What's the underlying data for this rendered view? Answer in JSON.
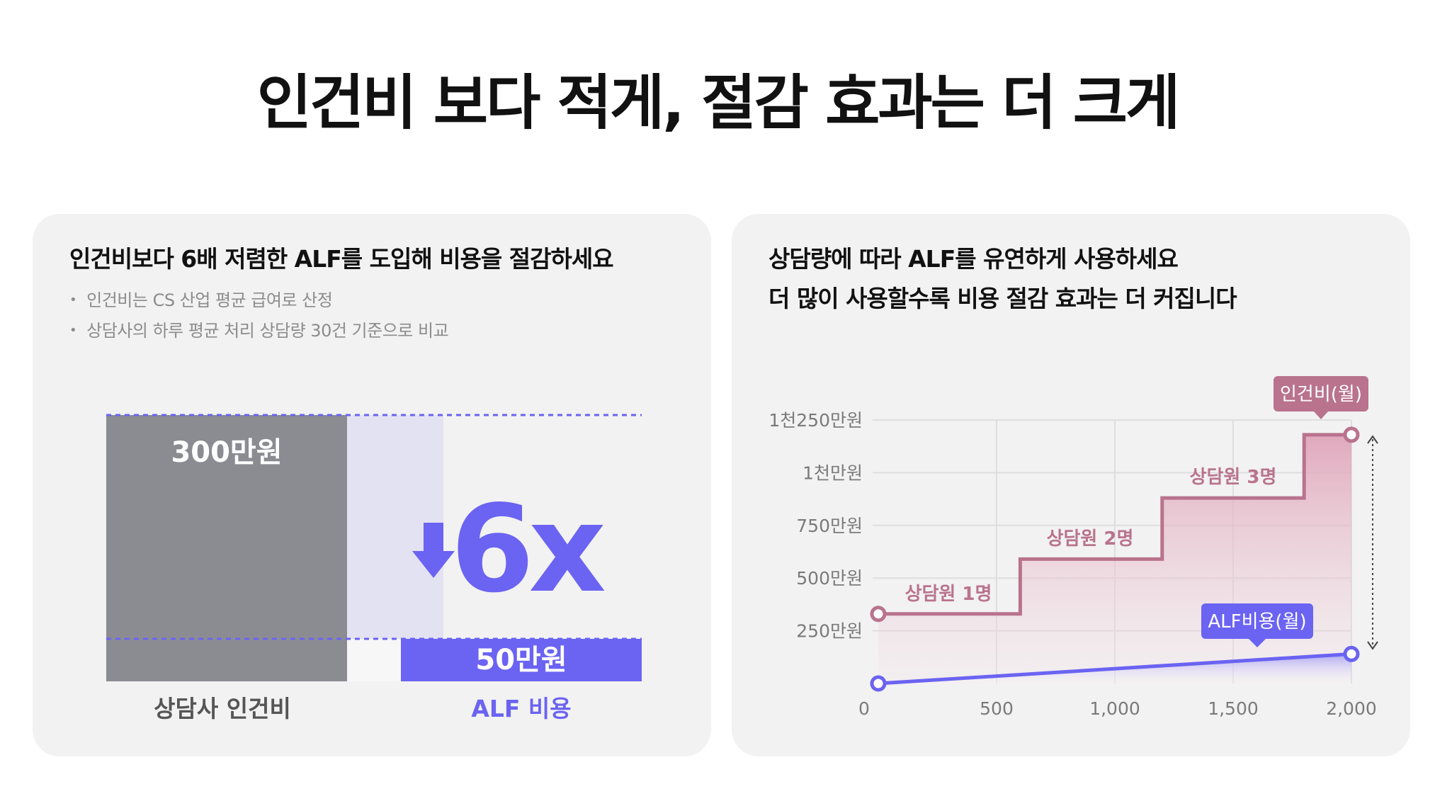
{
  "page": {
    "title": "인건비 보다 적게, 절감 효과는 더 크게"
  },
  "left_card": {
    "heading": "인건비보다 6배 저렴한 ALF를 도입해 비용을 절감하세요",
    "bullets": [
      "인건비는 CS 산업 평균 급여로 산정",
      "상담사의 하루 평균 처리 상담량 30건 기준으로 비교"
    ]
  },
  "right_card": {
    "heading_lines": [
      "상담량에 따라 ALF를 유연하게 사용하세요",
      "더 많이 사용할수록 비용 절감 효과는 더 커집니다"
    ]
  },
  "colors": {
    "accent": "#6b63f2",
    "accent_light": "#e3e2f2",
    "labor_gray": "#8b8c92",
    "labor_pink": "#b9738d",
    "card_bg": "#f2f2f2"
  },
  "chart_data": [
    {
      "type": "bar",
      "categories": [
        "상담사 인건비",
        "ALF 비용"
      ],
      "values": [
        300,
        50
      ],
      "value_labels": [
        "300만원",
        "50만원"
      ],
      "ratio_label": "6x",
      "ratio_icon": "arrow-down-icon"
    },
    {
      "type": "line",
      "x": [
        0,
        500,
        1000,
        1500,
        2000
      ],
      "xticks": [
        "0",
        "500",
        "1,000",
        "1,500",
        "2,000"
      ],
      "yticks": [
        "250만원",
        "500만원",
        "750만원",
        "1천만원",
        "1천250만원"
      ],
      "ytick_values": [
        250,
        500,
        750,
        1000,
        1250
      ],
      "xlim": [
        0,
        2000
      ],
      "ylim": [
        0,
        1250
      ],
      "series": [
        {
          "name": "인건비(월)",
          "step_x": [
            0,
            600,
            600,
            1200,
            1200,
            1800,
            1800,
            2000
          ],
          "step_y": [
            330,
            330,
            590,
            590,
            880,
            880,
            1180,
            1180
          ]
        },
        {
          "name": "ALF비용(월)",
          "x": [
            0,
            2000
          ],
          "y": [
            0,
            140
          ]
        }
      ],
      "annotations": [
        "상담원 1명",
        "상담원 2명",
        "상담원 3명"
      ]
    }
  ]
}
